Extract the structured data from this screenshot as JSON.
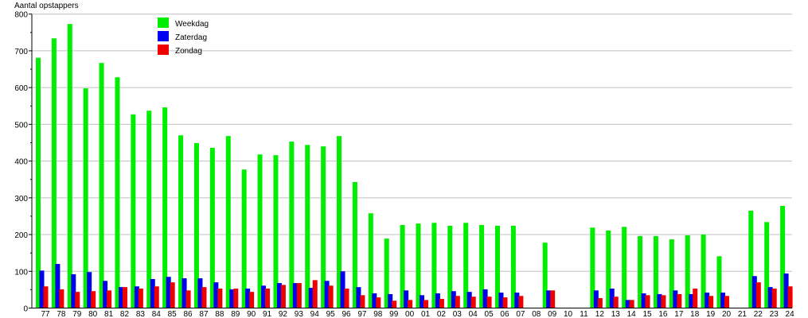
{
  "chart_data": {
    "type": "bar",
    "title": "",
    "ylabel": "Aantal opstappers",
    "xlabel": "",
    "ylim": [
      0,
      800
    ],
    "yticks": [
      0,
      100,
      200,
      300,
      400,
      500,
      600,
      700,
      800
    ],
    "grid": true,
    "legend_position": "top-left",
    "categories": [
      "77",
      "78",
      "79",
      "80",
      "81",
      "82",
      "83",
      "84",
      "85",
      "86",
      "87",
      "88",
      "89",
      "90",
      "91",
      "92",
      "93",
      "94",
      "95",
      "96",
      "97",
      "98",
      "99",
      "00",
      "01",
      "02",
      "03",
      "04",
      "05",
      "06",
      "07",
      "08",
      "09",
      "10",
      "11",
      "12",
      "13",
      "14",
      "15",
      "16",
      "17",
      "18",
      "19",
      "20",
      "21",
      "22",
      "23",
      "24"
    ],
    "series": [
      {
        "name": "Weekdag",
        "color": "#00ee00",
        "values": [
          681,
          734,
          773,
          598,
          667,
          628,
          527,
          537,
          546,
          470,
          449,
          436,
          468,
          377,
          418,
          416,
          453,
          444,
          440,
          468,
          343,
          258,
          189,
          226,
          230,
          232,
          224,
          232,
          226,
          224,
          224,
          null,
          178,
          null,
          null,
          219,
          211,
          221,
          196,
          196,
          187,
          198,
          200,
          141,
          null,
          265,
          234,
          278
        ]
      },
      {
        "name": "Zaterdag",
        "color": "#0000ee",
        "values": [
          102,
          120,
          92,
          98,
          74,
          57,
          59,
          79,
          85,
          81,
          81,
          70,
          51,
          53,
          61,
          68,
          68,
          55,
          74,
          100,
          57,
          40,
          38,
          48,
          35,
          40,
          46,
          44,
          51,
          42,
          42,
          null,
          48,
          null,
          null,
          48,
          53,
          22,
          40,
          38,
          48,
          38,
          42,
          42,
          null,
          87,
          57,
          94
        ]
      },
      {
        "name": "Zondag",
        "color": "#ee0000",
        "values": [
          59,
          51,
          44,
          46,
          48,
          57,
          53,
          59,
          70,
          48,
          57,
          53,
          53,
          44,
          53,
          63,
          68,
          76,
          61,
          53,
          35,
          29,
          20,
          22,
          22,
          25,
          33,
          31,
          31,
          29,
          33,
          null,
          48,
          null,
          null,
          27,
          31,
          22,
          35,
          35,
          38,
          53,
          33,
          33,
          null,
          70,
          53,
          59
        ]
      }
    ]
  }
}
